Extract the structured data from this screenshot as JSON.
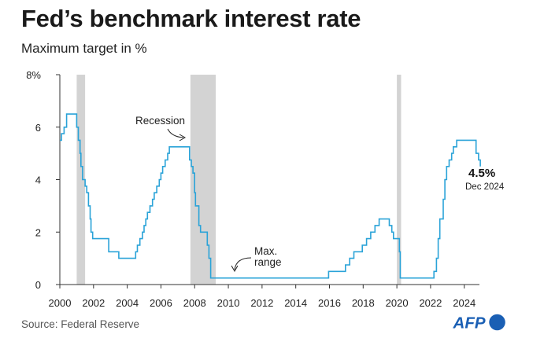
{
  "title": "Fed’s benchmark interest rate",
  "subtitle": "Maximum target in %",
  "source": "Source: Federal Reserve",
  "logo_text": "AFP",
  "colors": {
    "line": "#2aa3d8",
    "recession": "#d3d3d3",
    "axis": "#333333",
    "logo": "#1a5fb4"
  },
  "chart_data": {
    "type": "line",
    "title": "Fed’s benchmark interest rate",
    "subtitle": "Maximum target in %",
    "xlabel": "",
    "ylabel": "",
    "xlim": [
      2000,
      2024.9
    ],
    "ylim": [
      0,
      8
    ],
    "x_ticks": [
      2000,
      2002,
      2004,
      2006,
      2008,
      2010,
      2012,
      2014,
      2016,
      2018,
      2020,
      2022,
      2024
    ],
    "y_ticks": [
      {
        "value": 0,
        "label": "0"
      },
      {
        "value": 2,
        "label": "2"
      },
      {
        "value": 4,
        "label": "4"
      },
      {
        "value": 6,
        "label": "6"
      },
      {
        "value": 8,
        "label": "8%"
      }
    ],
    "grid": false,
    "recessions": [
      {
        "start": 2001.0,
        "end": 2001.5
      },
      {
        "start": 2007.75,
        "end": 2009.25
      },
      {
        "start": 2020.0,
        "end": 2020.25
      }
    ],
    "series": [
      {
        "step": true,
        "points": [
          [
            2000.0,
            5.5
          ],
          [
            2000.1,
            5.75
          ],
          [
            2000.25,
            6.0
          ],
          [
            2000.4,
            6.5
          ],
          [
            2001.0,
            6.0
          ],
          [
            2001.1,
            5.5
          ],
          [
            2001.2,
            5.0
          ],
          [
            2001.25,
            4.5
          ],
          [
            2001.35,
            4.0
          ],
          [
            2001.5,
            3.75
          ],
          [
            2001.6,
            3.5
          ],
          [
            2001.7,
            3.0
          ],
          [
            2001.8,
            2.5
          ],
          [
            2001.85,
            2.0
          ],
          [
            2001.95,
            1.75
          ],
          [
            2002.9,
            1.25
          ],
          [
            2003.5,
            1.0
          ],
          [
            2004.5,
            1.25
          ],
          [
            2004.6,
            1.5
          ],
          [
            2004.75,
            1.75
          ],
          [
            2004.9,
            2.0
          ],
          [
            2005.0,
            2.25
          ],
          [
            2005.1,
            2.5
          ],
          [
            2005.2,
            2.75
          ],
          [
            2005.35,
            3.0
          ],
          [
            2005.5,
            3.25
          ],
          [
            2005.6,
            3.5
          ],
          [
            2005.75,
            3.75
          ],
          [
            2005.9,
            4.0
          ],
          [
            2006.0,
            4.25
          ],
          [
            2006.1,
            4.5
          ],
          [
            2006.25,
            4.75
          ],
          [
            2006.4,
            5.0
          ],
          [
            2006.5,
            5.25
          ],
          [
            2007.7,
            4.75
          ],
          [
            2007.8,
            4.5
          ],
          [
            2007.9,
            4.25
          ],
          [
            2008.0,
            3.5
          ],
          [
            2008.05,
            3.0
          ],
          [
            2008.25,
            2.25
          ],
          [
            2008.35,
            2.0
          ],
          [
            2008.75,
            1.5
          ],
          [
            2008.85,
            1.0
          ],
          [
            2008.95,
            0.25
          ],
          [
            2015.95,
            0.5
          ],
          [
            2016.95,
            0.75
          ],
          [
            2017.2,
            1.0
          ],
          [
            2017.45,
            1.25
          ],
          [
            2017.95,
            1.5
          ],
          [
            2018.2,
            1.75
          ],
          [
            2018.45,
            2.0
          ],
          [
            2018.7,
            2.25
          ],
          [
            2018.95,
            2.5
          ],
          [
            2019.55,
            2.25
          ],
          [
            2019.7,
            2.0
          ],
          [
            2019.8,
            1.75
          ],
          [
            2020.15,
            1.25
          ],
          [
            2020.2,
            0.25
          ],
          [
            2022.2,
            0.5
          ],
          [
            2022.35,
            1.0
          ],
          [
            2022.45,
            1.75
          ],
          [
            2022.55,
            2.5
          ],
          [
            2022.75,
            3.25
          ],
          [
            2022.85,
            4.0
          ],
          [
            2022.95,
            4.5
          ],
          [
            2023.1,
            4.75
          ],
          [
            2023.25,
            5.0
          ],
          [
            2023.35,
            5.25
          ],
          [
            2023.55,
            5.5
          ],
          [
            2024.7,
            5.0
          ],
          [
            2024.85,
            4.75
          ],
          [
            2024.95,
            4.5
          ]
        ]
      }
    ],
    "annotations": [
      {
        "text": "Recession"
      },
      {
        "text_lines": [
          "Max.",
          "range"
        ]
      },
      {
        "value_text": "4.5%",
        "date_text": "Dec 2024"
      }
    ]
  }
}
